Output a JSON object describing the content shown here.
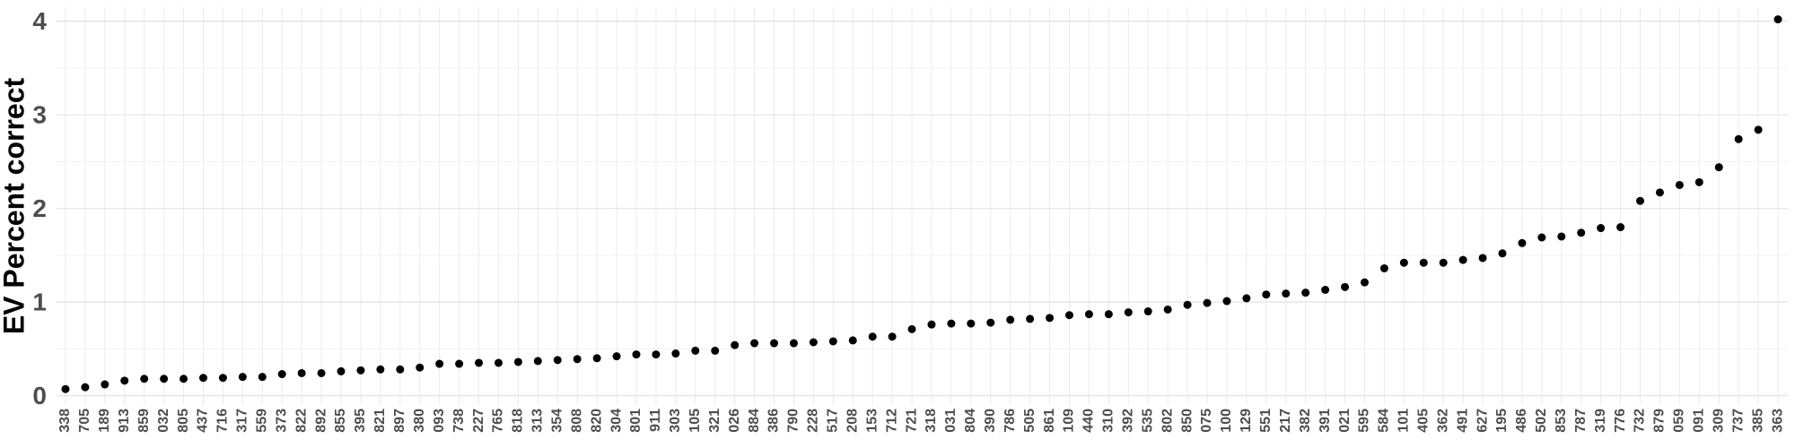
{
  "chart_data": {
    "type": "scatter",
    "y_label": "EV Percent correct",
    "categories": [
      "338",
      "705",
      "189",
      "913",
      "859",
      "032",
      "805",
      "437",
      "716",
      "317",
      "559",
      "373",
      "822",
      "892",
      "855",
      "395",
      "821",
      "897",
      "380",
      "093",
      "738",
      "227",
      "765",
      "818",
      "313",
      "354",
      "808",
      "820",
      "304",
      "801",
      "911",
      "303",
      "105",
      "321",
      "026",
      "884",
      "386",
      "790",
      "228",
      "517",
      "208",
      "153",
      "712",
      "721",
      "318",
      "031",
      "804",
      "390",
      "786",
      "505",
      "861",
      "109",
      "440",
      "310",
      "392",
      "535",
      "802",
      "850",
      "075",
      "100",
      "129",
      "551",
      "217",
      "382",
      "391",
      "021",
      "595",
      "584",
      "101",
      "405",
      "362",
      "491",
      "627",
      "195",
      "486",
      "502",
      "853",
      "787",
      "319",
      "776",
      "732",
      "879",
      "059",
      "091",
      "309",
      "737",
      "385",
      "363"
    ],
    "values": [
      0.07,
      0.09,
      0.12,
      0.16,
      0.18,
      0.18,
      0.18,
      0.19,
      0.19,
      0.2,
      0.2,
      0.23,
      0.24,
      0.24,
      0.26,
      0.27,
      0.28,
      0.28,
      0.3,
      0.34,
      0.34,
      0.35,
      0.35,
      0.36,
      0.37,
      0.38,
      0.39,
      0.4,
      0.42,
      0.44,
      0.44,
      0.45,
      0.48,
      0.48,
      0.54,
      0.56,
      0.56,
      0.56,
      0.57,
      0.58,
      0.59,
      0.63,
      0.63,
      0.71,
      0.76,
      0.77,
      0.77,
      0.78,
      0.81,
      0.82,
      0.83,
      0.86,
      0.87,
      0.87,
      0.89,
      0.9,
      0.92,
      0.97,
      0.99,
      1.01,
      1.04,
      1.08,
      1.09,
      1.1,
      1.13,
      1.16,
      1.21,
      1.36,
      1.42,
      1.42,
      1.42,
      1.45,
      1.47,
      1.52,
      1.63,
      1.69,
      1.7,
      1.74,
      1.79,
      1.8,
      2.08,
      2.17,
      2.25,
      2.28,
      2.44,
      2.74,
      2.84,
      4.02
    ],
    "color": "#000000",
    "ylim": [
      -0.1,
      4.15
    ],
    "yticks": [
      0,
      1,
      2,
      3,
      4
    ],
    "grid": true
  }
}
